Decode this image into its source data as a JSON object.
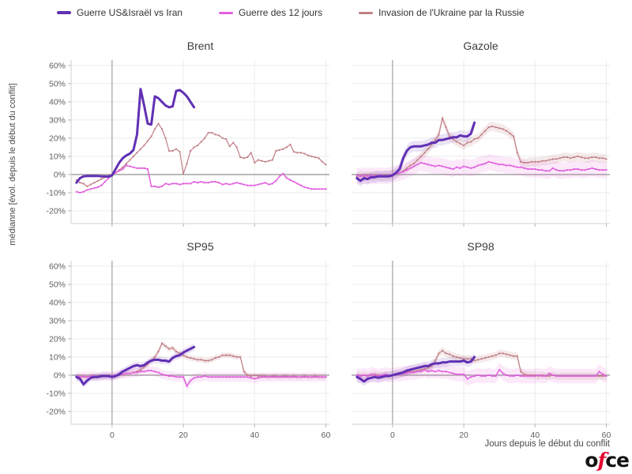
{
  "legend": {
    "items": [
      {
        "label": "Guerre US&Israël vs Iran",
        "color": "#6130b4"
      },
      {
        "label": "Guerre des 12 jours",
        "color": "#e160de"
      },
      {
        "label": "Invasion de l'Ukraine par la Russie",
        "color": "#c07f85"
      }
    ]
  },
  "axes": {
    "y_label": "médianne [évol. depuis le début du conflit]",
    "x_label": "Jours depuis le début du conflit"
  },
  "logo": {
    "text_before": "o",
    "accent": "f",
    "text_after": "ce",
    "accent_color": "#e4032e"
  },
  "chart_data": {
    "type": "line",
    "x_start": -10,
    "x_range": [
      -11.5,
      61
    ],
    "y_range": [
      -27,
      63
    ],
    "x_gridlines": [
      0,
      20,
      40,
      60
    ],
    "y_gridlines": [
      -20,
      -10,
      0,
      10,
      20,
      30,
      40,
      50,
      60
    ],
    "y_ticks": [
      {
        "v": 60,
        "label": "60%"
      },
      {
        "v": 50,
        "label": "50%"
      },
      {
        "v": 40,
        "label": "40%"
      },
      {
        "v": 30,
        "label": "30%"
      },
      {
        "v": 20,
        "label": "20%"
      },
      {
        "v": 10,
        "label": "10%"
      },
      {
        "v": 0,
        "label": "0%"
      },
      {
        "v": -10,
        "label": "-10%"
      },
      {
        "v": -20,
        "label": "-20%"
      }
    ],
    "x_ticks": [
      {
        "v": 0,
        "label": "0"
      },
      {
        "v": 20,
        "label": "20"
      },
      {
        "v": 40,
        "label": "40"
      },
      {
        "v": 60,
        "label": "60"
      }
    ],
    "series_meta": [
      {
        "key": "iran",
        "name": "Guerre US&Israël vs Iran",
        "color": "#6130b4",
        "band_opacity": 0.13
      },
      {
        "key": "twelve_days",
        "name": "Guerre des 12 jours",
        "color": "#e160de",
        "band_opacity": 0.14
      },
      {
        "key": "ukraine",
        "name": "Invasion de l'Ukraine par la Russie",
        "color": "#c07f85",
        "band_opacity": 0.16
      }
    ],
    "subplots": [
      {
        "key": "brent",
        "title": "Brent",
        "show_y_labels": true,
        "show_x_labels": false,
        "series": {
          "iran": {
            "band_hw": 0,
            "values": [
              -4.5,
              -2,
              -1,
              -0.8,
              -0.8,
              -0.8,
              -0.8,
              -1,
              -1,
              -1.2,
              -0.5,
              3,
              6.5,
              9,
              10.5,
              11.5,
              13.5,
              22,
              47,
              38,
              28,
              27.5,
              43,
              42,
              40,
              38,
              37,
              37.5,
              46,
              46.5,
              45,
              43,
              40,
              37
            ]
          },
          "twelve_days": {
            "band_hw": 0,
            "values": [
              -9.5,
              -10,
              -9.5,
              -8.5,
              -8,
              -7.5,
              -7,
              -6,
              -4,
              -2,
              0,
              1,
              2,
              3,
              5,
              4.5,
              4,
              3.5,
              3.5,
              3.5,
              3,
              -6.5,
              -6.5,
              -7,
              -6.5,
              -5,
              -5.5,
              -5,
              -5,
              -5.5,
              -5,
              -5,
              -5,
              -4,
              -4.5,
              -4,
              -4.5,
              -4.5,
              -4,
              -4,
              -4.5,
              -5.5,
              -5,
              -5.5,
              -5,
              -4.5,
              -5,
              -5.5,
              -6,
              -6,
              -6,
              -5.5,
              -5,
              -4.5,
              -5.5,
              -5,
              -3.5,
              -1,
              0.5,
              -2,
              -3,
              -4,
              -5,
              -6,
              -7,
              -7.5,
              -8,
              -8,
              -8,
              -8,
              -8
            ]
          },
          "ukraine": {
            "band_hw": 0,
            "values": [
              -3,
              -4.5,
              -5,
              -6.5,
              -5.5,
              -4.5,
              -3.5,
              -2.5,
              -1.5,
              -0.5,
              0,
              1,
              2.5,
              4,
              6,
              8,
              10,
              12,
              14,
              16,
              18.5,
              21,
              25,
              28,
              25,
              20,
              13,
              13,
              14,
              12.5,
              0.5,
              6,
              13,
              15,
              16,
              18,
              20,
              23,
              23,
              22,
              21.5,
              20,
              19.5,
              15.5,
              17.5,
              15,
              9.5,
              9,
              9.5,
              12,
              6.5,
              8,
              7.5,
              7,
              7.5,
              8,
              13,
              13.5,
              14,
              15,
              16.5,
              12.5,
              12,
              12,
              11.5,
              10.5,
              10,
              9.5,
              9,
              7,
              5.5
            ]
          }
        }
      },
      {
        "key": "gazole",
        "title": "Gazole",
        "show_y_labels": false,
        "show_x_labels": false,
        "series": {
          "iran": {
            "band_hw": 3,
            "values": [
              -2,
              -3.5,
              -2,
              -2.5,
              -1.5,
              -1.5,
              -1,
              -1,
              -1,
              -1,
              -0.5,
              1,
              3,
              9,
              13,
              15,
              15.5,
              15.5,
              15.5,
              16,
              16.5,
              17.5,
              17.5,
              19,
              19,
              19.5,
              20,
              20.5,
              20.5,
              21.5,
              21,
              21,
              22.5,
              28.5
            ]
          },
          "twelve_days": {
            "band_hw": 4.5,
            "values": [
              -0.5,
              -1,
              -0.5,
              -1,
              -0.5,
              -1,
              -0.5,
              -0.5,
              -1,
              -0.5,
              0,
              0.5,
              1,
              1.5,
              2.5,
              3.5,
              4.5,
              5.5,
              6.5,
              6,
              5.5,
              5,
              4.5,
              5,
              4.5,
              4,
              3.5,
              3,
              4,
              3.5,
              4.5,
              4,
              3.5,
              4,
              5,
              5.5,
              6,
              7,
              6.5,
              6,
              5.5,
              5.5,
              5,
              5,
              4.5,
              4,
              4,
              3.5,
              3,
              3,
              3,
              2.5,
              2.5,
              2,
              2,
              3.5,
              2.5,
              2,
              2,
              2.5,
              2.5,
              3,
              3,
              2.5,
              2.5,
              3,
              3.5,
              3,
              2.5,
              2.5,
              2.5
            ]
          },
          "ukraine": {
            "band_hw": 2.5,
            "values": [
              -1,
              -0.5,
              -1,
              -0.5,
              -1,
              -0.5,
              -0.5,
              -1,
              -0.5,
              -0.5,
              0,
              0.5,
              1,
              2,
              3.5,
              5,
              6,
              8,
              10,
              12,
              14,
              16.5,
              19,
              22,
              31,
              26,
              21,
              19.5,
              18,
              17,
              16,
              17.5,
              18,
              19.5,
              20,
              22,
              24,
              26,
              26.5,
              26,
              25.5,
              25,
              24,
              22.5,
              21,
              12,
              7,
              6.5,
              6.5,
              7,
              7,
              7,
              7.5,
              7.5,
              8,
              8.5,
              8.5,
              9,
              9.5,
              9.5,
              9,
              9.5,
              10,
              9.5,
              9,
              9,
              9.5,
              9.5,
              9,
              9,
              8.5
            ]
          }
        }
      },
      {
        "key": "sp95",
        "title": "SP95",
        "show_y_labels": true,
        "show_x_labels": true,
        "series": {
          "iran": {
            "band_hw": 2,
            "values": [
              -1,
              -2,
              -5,
              -3,
              -1.5,
              -1,
              -1,
              -0.5,
              -0.5,
              -0.5,
              -1,
              -0.5,
              0.5,
              2,
              3,
              4,
              5,
              5.5,
              5,
              5.5,
              7,
              8,
              8.5,
              8.5,
              8,
              8,
              7.5,
              9.5,
              10.5,
              11,
              12.5,
              13.5,
              14.5,
              15.5
            ]
          },
          "twelve_days": {
            "band_hw": 2.5,
            "values": [
              -0.5,
              -1,
              -0.5,
              -1,
              -0.5,
              -0.5,
              -1,
              -0.5,
              -0.5,
              -0.5,
              -0.5,
              0,
              0.5,
              0.5,
              1,
              1,
              1.5,
              1.5,
              2,
              2,
              2.5,
              2.5,
              2,
              1.5,
              0.5,
              0,
              -0.5,
              -0.5,
              -1,
              -1,
              -1,
              -6,
              -3,
              -1.5,
              -1,
              -1,
              -0.5,
              -1,
              -1,
              -1,
              -1,
              -1,
              -1,
              -1,
              -1,
              -1,
              -1,
              -1,
              -1,
              -1.5,
              -2,
              -1.5,
              -1,
              -1,
              -1,
              -1,
              -1,
              -1,
              -1,
              -1,
              -1,
              -1,
              -1,
              -1,
              -1,
              -1,
              -1,
              -1,
              -1,
              -1,
              -1
            ]
          },
          "ukraine": {
            "band_hw": 1.5,
            "values": [
              -1,
              -0.5,
              -1,
              -1,
              -0.5,
              -1,
              -0.5,
              -1,
              -0.5,
              -0.5,
              -0.5,
              -0.5,
              0,
              0.5,
              1,
              1,
              1.5,
              2,
              3,
              4.5,
              6,
              8,
              10,
              13,
              17.5,
              16,
              14.5,
              15,
              13,
              12,
              11,
              10,
              9.5,
              9,
              8.5,
              8.5,
              8,
              8,
              8.5,
              9.5,
              10,
              11,
              11,
              11,
              10.5,
              10,
              10,
              2,
              0,
              -0.5,
              0,
              -0.5,
              -0.5,
              -0.5,
              -1,
              -0.5,
              -0.5,
              -1,
              -0.5,
              -0.5,
              -1,
              -0.5,
              -1,
              -1,
              -0.5,
              -1,
              -1,
              -0.5,
              -1,
              -1,
              -1
            ]
          }
        }
      },
      {
        "key": "sp98",
        "title": "SP98",
        "show_y_labels": false,
        "show_x_labels": true,
        "series": {
          "iran": {
            "band_hw": 2.5,
            "values": [
              -1,
              -2,
              -3.5,
              -2,
              -1.5,
              -1,
              -1.5,
              -1,
              -0.5,
              -0.5,
              0,
              0.5,
              1,
              1.5,
              2.5,
              3,
              3.5,
              4,
              4.5,
              5,
              5,
              6,
              6.5,
              6.5,
              7,
              7,
              7.5,
              7.5,
              7.5,
              7.5,
              8,
              7,
              7.5,
              10
            ]
          },
          "twelve_days": {
            "band_hw": 4,
            "values": [
              0,
              -0.5,
              0,
              -0.5,
              0.5,
              0,
              -0.5,
              0,
              0.5,
              0,
              0,
              0.5,
              0.5,
              1,
              1,
              1.5,
              1.5,
              2,
              2,
              3,
              2,
              2.5,
              2,
              2.5,
              2,
              2,
              1.5,
              1,
              0.5,
              0.5,
              0.5,
              -2,
              -1,
              -0.5,
              0,
              -0.5,
              -0.5,
              0,
              -0.5,
              -0.5,
              3,
              1,
              0,
              -0.5,
              -0.5,
              0,
              -0.5,
              -0.5,
              -0.5,
              -0.5,
              -0.5,
              0,
              -0.5,
              -0.5,
              1,
              0,
              -0.5,
              -0.5,
              -0.5,
              -0.5,
              -0.5,
              -0.5,
              -0.5,
              -0.5,
              -0.5,
              -0.5,
              -0.5,
              -0.5,
              2,
              0.5,
              -0.5
            ]
          },
          "ukraine": {
            "band_hw": 2,
            "values": [
              0,
              -0.5,
              0,
              -0.5,
              0,
              0.5,
              0,
              -0.5,
              0,
              0,
              0,
              0.5,
              0.5,
              1,
              1.5,
              2,
              2,
              2.5,
              3,
              3.5,
              4,
              5,
              8,
              12,
              13.5,
              12,
              11.5,
              10.5,
              10,
              9.5,
              9,
              9,
              9,
              8,
              8.5,
              9,
              9.5,
              10,
              10.5,
              11,
              12,
              12,
              11.5,
              11,
              10.5,
              10.5,
              2,
              0.5,
              0,
              0,
              0,
              -0.5,
              0,
              -0.5,
              -0.5,
              0,
              -0.5,
              -0.5,
              -0.5,
              -0.5,
              -0.5,
              -0.5,
              -0.5,
              -0.5,
              -0.5,
              -0.5,
              -0.5,
              -0.5,
              -0.5,
              -0.5,
              -0.5
            ]
          }
        }
      }
    ]
  }
}
